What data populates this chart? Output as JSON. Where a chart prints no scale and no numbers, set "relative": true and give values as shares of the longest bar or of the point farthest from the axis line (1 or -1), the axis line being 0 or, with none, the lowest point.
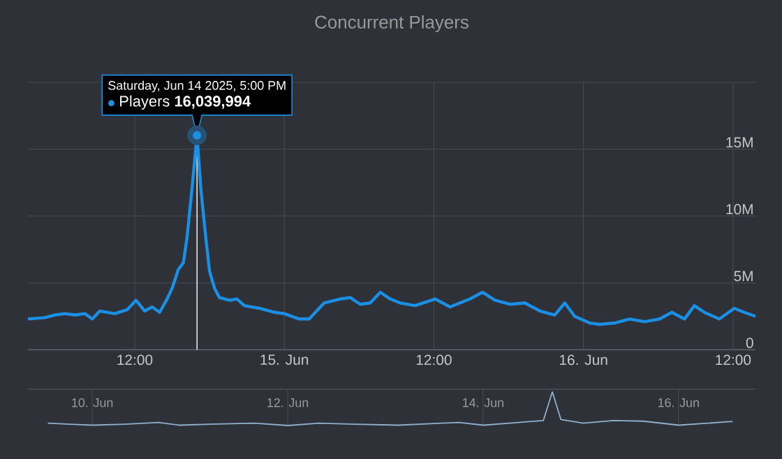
{
  "chart_data": [
    {
      "type": "line",
      "title": "Concurrent Players",
      "grid": true,
      "marker": "none",
      "xlim": [
        "2025-06-14T03:26",
        "2025-06-16T13:48"
      ],
      "xticks": [
        {
          "value": "2025-06-14T12:00",
          "label": "12:00"
        },
        {
          "value": "2025-06-15T00:00",
          "label": "15. Jun"
        },
        {
          "value": "2025-06-15T12:00",
          "label": "12:00"
        },
        {
          "value": "2025-06-16T00:00",
          "label": "16. Jun"
        },
        {
          "value": "2025-06-16T12:00",
          "label": "12:00"
        }
      ],
      "ylim": [
        0,
        20000000
      ],
      "yticks": [
        0,
        {
          "value": 5000000,
          "label": "5M"
        },
        {
          "value": 10000000,
          "label": "10M"
        },
        {
          "value": 15000000,
          "label": "15M"
        },
        {
          "value": 20000000,
          "label": null
        }
      ],
      "x": [
        "2025-06-14T03:26",
        "2025-06-14T04:47",
        "2025-06-14T05:36",
        "2025-06-14T06:24",
        "2025-06-14T07:12",
        "2025-06-14T08:00",
        "2025-06-14T08:36",
        "2025-06-14T09:12",
        "2025-06-14T10:24",
        "2025-06-14T11:24",
        "2025-06-14T12:06",
        "2025-06-14T12:48",
        "2025-06-14T13:24",
        "2025-06-14T14:00",
        "2025-06-14T14:36",
        "2025-06-14T15:00",
        "2025-06-14T15:30",
        "2025-06-14T15:54",
        "2025-06-14T16:12",
        "2025-06-14T16:36",
        "2025-06-14T17:00",
        "2025-06-14T17:18",
        "2025-06-14T17:42",
        "2025-06-14T18:00",
        "2025-06-14T18:24",
        "2025-06-14T18:48",
        "2025-06-14T19:36",
        "2025-06-14T20:12",
        "2025-06-14T20:48",
        "2025-06-14T22:00",
        "2025-06-14T23:12",
        "2025-06-15T00:00",
        "2025-06-15T01:12",
        "2025-06-15T02:00",
        "2025-06-15T03:12",
        "2025-06-15T04:30",
        "2025-06-15T05:18",
        "2025-06-15T06:06",
        "2025-06-15T06:54",
        "2025-06-15T07:42",
        "2025-06-15T08:30",
        "2025-06-15T09:18",
        "2025-06-15T10:30",
        "2025-06-15T12:06",
        "2025-06-15T13:18",
        "2025-06-15T14:54",
        "2025-06-15T15:54",
        "2025-06-15T16:54",
        "2025-06-15T18:06",
        "2025-06-15T19:18",
        "2025-06-15T20:30",
        "2025-06-15T21:42",
        "2025-06-15T22:30",
        "2025-06-15T23:18",
        "2025-06-16T00:30",
        "2025-06-16T01:18",
        "2025-06-16T02:30",
        "2025-06-16T03:42",
        "2025-06-16T04:54",
        "2025-06-16T06:06",
        "2025-06-16T07:06",
        "2025-06-16T08:06",
        "2025-06-16T08:54",
        "2025-06-16T09:42",
        "2025-06-16T10:54",
        "2025-06-16T12:06",
        "2025-06-16T12:54",
        "2025-06-16T13:48"
      ],
      "series": [
        {
          "name": "Players",
          "color": "#1a8fe3",
          "values": [
            2300000,
            2400000,
            2600000,
            2700000,
            2600000,
            2700000,
            2300000,
            2900000,
            2700000,
            3000000,
            3700000,
            2900000,
            3200000,
            2800000,
            3800000,
            4600000,
            6000000,
            6500000,
            8400000,
            12100000,
            16039994,
            12100000,
            8400000,
            5900000,
            4600000,
            3900000,
            3700000,
            3800000,
            3300000,
            3100000,
            2800000,
            2700000,
            2300000,
            2300000,
            3500000,
            3800000,
            3900000,
            3400000,
            3500000,
            4300000,
            3800000,
            3500000,
            3300000,
            3800000,
            3200000,
            3800000,
            4300000,
            3700000,
            3400000,
            3500000,
            2900000,
            2600000,
            3500000,
            2500000,
            2000000,
            1900000,
            2000000,
            2300000,
            2100000,
            2300000,
            2800000,
            2300000,
            3300000,
            2800000,
            2300000,
            3100000,
            2800000,
            2500000
          ],
          "value_labels": [
            null,
            null,
            null,
            null,
            null,
            null,
            null,
            null,
            null,
            null,
            null,
            null,
            null,
            null,
            null,
            null,
            null,
            null,
            null,
            null,
            "16,039,994",
            null,
            null,
            null,
            null,
            null,
            null,
            null,
            null,
            null,
            null,
            null,
            null,
            null,
            null,
            null,
            null,
            null,
            null,
            null,
            null,
            null,
            null,
            null,
            null,
            null,
            null,
            null,
            null,
            null,
            null,
            null,
            null,
            null,
            null,
            null,
            null,
            null,
            null,
            null,
            null,
            null,
            null,
            null,
            null,
            null,
            null,
            null
          ]
        }
      ],
      "ref_lines": [
        {
          "axis": "x",
          "value": "2025-06-14T17:00",
          "color": "#e6e6e6"
        }
      ],
      "annotations": [
        "Saturday, Jun 14 2025, 5:00 PM"
      ]
    },
    {
      "type": "line",
      "relative": true,
      "grid": "x",
      "tick_labels": "x",
      "color": "#8fb0cf",
      "xlim": [
        "2025-06-09T08:12",
        "2025-06-16T18:54"
      ],
      "xticks": [
        {
          "value": "2025-06-10T00:00",
          "label": "10. Jun"
        },
        {
          "value": "2025-06-12T00:00",
          "label": "12. Jun"
        },
        {
          "value": "2025-06-14T00:00",
          "label": "14. Jun"
        },
        {
          "value": "2025-06-16T00:00",
          "label": "16. Jun"
        }
      ],
      "x": [
        "2025-06-09T13:06",
        "2025-06-09T18:30",
        "2025-06-10T00:00",
        "2025-06-10T08:00",
        "2025-06-10T16:18",
        "2025-06-10T21:24",
        "2025-06-11T04:48",
        "2025-06-11T15:48",
        "2025-06-12T00:06",
        "2025-06-12T07:42",
        "2025-06-12T16:18",
        "2025-06-13T03:18",
        "2025-06-13T11:54",
        "2025-06-13T18:00",
        "2025-06-14T00:06",
        "2025-06-14T08:42",
        "2025-06-14T14:48",
        "2025-06-14T17:00",
        "2025-06-14T19:06",
        "2025-06-15T00:36",
        "2025-06-15T08:00",
        "2025-06-15T15:18",
        "2025-06-16T00:06",
        "2025-06-16T07:12",
        "2025-06-16T13:18"
      ],
      "values": [
        0.07,
        0.04,
        0.01,
        0.04,
        0.09,
        0.01,
        0.04,
        0.07,
        0,
        0.07,
        0.04,
        0.01,
        0.06,
        0.09,
        0.01,
        0.09,
        0.15,
        1,
        0.18,
        0.07,
        0.15,
        0.13,
        0.01,
        0.07,
        0.12
      ]
    }
  ]
}
